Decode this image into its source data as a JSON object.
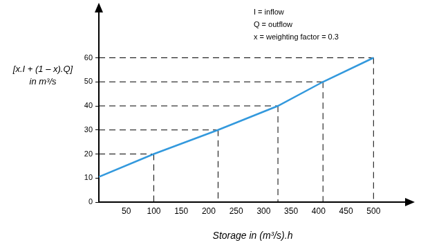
{
  "chart_data": {
    "type": "line",
    "x_label": "Storage in (m³/s).h",
    "y_label": [
      "[x.I + (1 – x).Q]",
      "in m³/s"
    ],
    "annotations": [
      "I = inflow",
      "Q = outflow",
      "x = weighting factor = 0.3"
    ],
    "x": [
      0,
      100,
      217,
      326,
      408,
      500
    ],
    "values": [
      10.5,
      20,
      30,
      40,
      50,
      60
    ],
    "color": "#3399dd",
    "xlim": [
      0,
      560
    ],
    "xticks": [
      50,
      100,
      150,
      200,
      250,
      300,
      350,
      400,
      450,
      500
    ],
    "ylim": [
      0,
      80
    ],
    "yticks": [
      0,
      10,
      20,
      30,
      40,
      50,
      60
    ],
    "grid": false
  }
}
